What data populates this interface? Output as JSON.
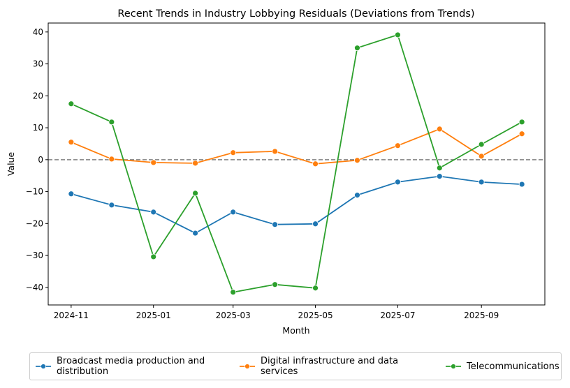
{
  "chart_data": {
    "type": "line",
    "title": "Recent Trends in Industry Lobbying Residuals (Deviations from Trends)",
    "xlabel": "Month",
    "ylabel": "Value",
    "x": [
      "2024-11-01",
      "2024-12-01",
      "2025-01-01",
      "2025-02-01",
      "2025-03-01",
      "2025-04-01",
      "2025-05-01",
      "2025-06-01",
      "2025-07-01",
      "2025-08-01",
      "2025-09-01",
      "2025-10-01"
    ],
    "x_ticks": [
      "2024-11",
      "2025-01",
      "2025-03",
      "2025-05",
      "2025-07",
      "2025-09"
    ],
    "xlim": [
      "2024-10-15",
      "2025-10-18"
    ],
    "y_ticks": [
      40,
      30,
      20,
      10,
      0,
      -10,
      -20,
      -30,
      -40
    ],
    "y_tick_labels": [
      "40",
      "30",
      "20",
      "10",
      "0",
      "−10",
      "−20",
      "−30",
      "−40"
    ],
    "ylim": [
      -45.5,
      42.8
    ],
    "grid": false,
    "reference_line": {
      "y": 0,
      "style": "dashed",
      "color": "#808080"
    },
    "legend_placement": "bottom-center",
    "series": [
      {
        "name": "Broadcast media production and distribution",
        "name_lines": [
          "Broadcast media production and",
          "distribution"
        ],
        "color": "#1f77b4",
        "values": [
          -10.7,
          -14.2,
          -16.4,
          -23.0,
          -16.4,
          -20.3,
          -20.1,
          -11.1,
          -7.0,
          -5.2,
          -7.0,
          -7.7
        ]
      },
      {
        "name": "Digital infrastructure and data services",
        "name_lines": [
          "Digital infrastructure and data",
          "services"
        ],
        "color": "#ff7f0e",
        "values": [
          5.5,
          0.2,
          -0.9,
          -1.1,
          2.2,
          2.6,
          -1.3,
          -0.2,
          4.4,
          9.6,
          1.1,
          8.1
        ]
      },
      {
        "name": "Telecommunications",
        "name_lines": [
          "Telecommunications"
        ],
        "color": "#2ca02c",
        "values": [
          17.5,
          11.8,
          -30.4,
          -10.5,
          -41.5,
          -39.1,
          -40.2,
          35.0,
          39.1,
          -2.6,
          4.8,
          11.8
        ]
      }
    ]
  }
}
